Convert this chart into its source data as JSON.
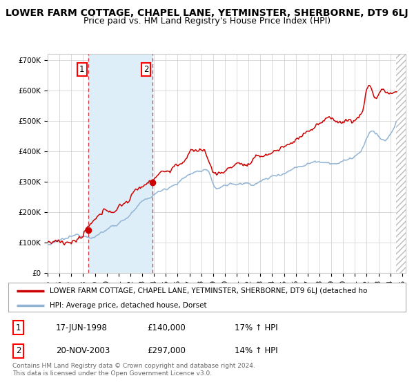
{
  "title": "LOWER FARM COTTAGE, CHAPEL LANE, YETMINSTER, SHERBORNE, DT9 6LJ",
  "subtitle": "Price paid vs. HM Land Registry's House Price Index (HPI)",
  "legend_line1": "LOWER FARM COTTAGE, CHAPEL LANE, YETMINSTER, SHERBORNE, DT9 6LJ (detached ho",
  "legend_line2": "HPI: Average price, detached house, Dorset",
  "footer": "Contains HM Land Registry data © Crown copyright and database right 2024.\nThis data is licensed under the Open Government Licence v3.0.",
  "sale1_date": 1998.46,
  "sale1_price": 140000,
  "sale1_label": "1",
  "sale2_date": 2003.88,
  "sale2_price": 297000,
  "sale2_label": "2",
  "table_rows": [
    [
      "1",
      "17-JUN-1998",
      "£140,000",
      "17% ↑ HPI"
    ],
    [
      "2",
      "20-NOV-2003",
      "£297,000",
      "14% ↑ HPI"
    ]
  ],
  "ylim": [
    0,
    720000
  ],
  "xlim_start": 1995.0,
  "xlim_end": 2025.3,
  "hatch_start": 2024.5,
  "hpi_color": "#92b4d4",
  "price_color": "#cc0000",
  "grid_color": "#cccccc",
  "bg_color": "#ffffff",
  "shade_color": "#ddeef8",
  "hatch_color": "#bbbbbb",
  "title_fontsize": 10,
  "subtitle_fontsize": 9,
  "tick_fontsize": 7.5
}
